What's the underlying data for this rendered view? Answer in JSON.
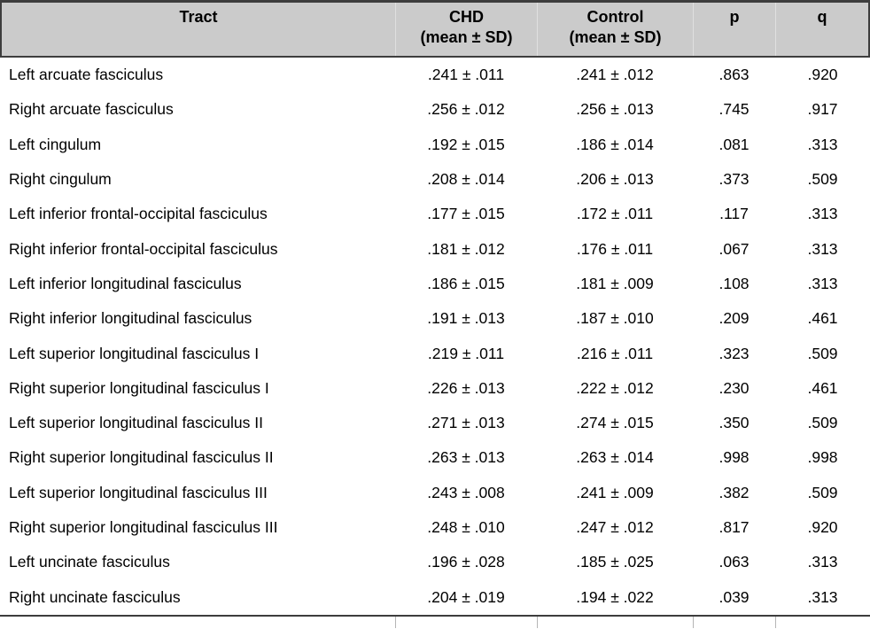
{
  "header": {
    "columns": [
      {
        "label": "Tract",
        "sub": ""
      },
      {
        "label": "CHD",
        "sub": "(mean ± SD)"
      },
      {
        "label": "Control",
        "sub": "(mean ± SD)"
      },
      {
        "label": "p",
        "sub": ""
      },
      {
        "label": "q",
        "sub": ""
      }
    ]
  },
  "rows": [
    {
      "tract": "Left arcuate fasciculus",
      "chd": ".241 ± .011",
      "control": ".241 ± .012",
      "p": ".863",
      "q": ".920"
    },
    {
      "tract": "Right arcuate fasciculus",
      "chd": ".256 ± .012",
      "control": ".256 ± .013",
      "p": ".745",
      "q": ".917"
    },
    {
      "tract": "Left cingulum",
      "chd": ".192 ± .015",
      "control": ".186 ± .014",
      "p": ".081",
      "q": ".313"
    },
    {
      "tract": "Right cingulum",
      "chd": ".208 ± .014",
      "control": ".206 ± .013",
      "p": ".373",
      "q": ".509"
    },
    {
      "tract": "Left inferior frontal-occipital fasciculus",
      "chd": ".177 ± .015",
      "control": ".172 ± .011",
      "p": ".117",
      "q": ".313"
    },
    {
      "tract": "Right inferior frontal-occipital fasciculus",
      "chd": ".181 ± .012",
      "control": ".176 ± .011",
      "p": ".067",
      "q": ".313"
    },
    {
      "tract": "Left inferior longitudinal fasciculus",
      "chd": ".186 ± .015",
      "control": ".181 ± .009",
      "p": ".108",
      "q": ".313"
    },
    {
      "tract": "Right inferior longitudinal fasciculus",
      "chd": ".191 ± .013",
      "control": ".187 ± .010",
      "p": ".209",
      "q": ".461"
    },
    {
      "tract": "Left superior longitudinal fasciculus I",
      "chd": ".219 ± .011",
      "control": ".216 ± .011",
      "p": ".323",
      "q": ".509"
    },
    {
      "tract": "Right superior longitudinal fasciculus I",
      "chd": ".226 ± .013",
      "control": ".222 ± .012",
      "p": ".230",
      "q": ".461"
    },
    {
      "tract": "Left superior longitudinal fasciculus II",
      "chd": ".271 ± .013",
      "control": ".274 ± .015",
      "p": ".350",
      "q": ".509"
    },
    {
      "tract": "Right superior longitudinal fasciculus II",
      "chd": ".263 ± .013",
      "control": ".263 ± .014",
      "p": ".998",
      "q": ".998"
    },
    {
      "tract": "Left superior longitudinal fasciculus III",
      "chd": ".243 ± .008",
      "control": ".241 ± .009",
      "p": ".382",
      "q": ".509"
    },
    {
      "tract": "Right superior longitudinal fasciculus III",
      "chd": ".248 ± .010",
      "control": ".247 ± .012",
      "p": ".817",
      "q": ".920"
    },
    {
      "tract": "Left uncinate fasciculus",
      "chd": ".196 ± .028",
      "control": ".185 ± .025",
      "p": ".063",
      "q": ".313"
    },
    {
      "tract": "Right uncinate fasciculus",
      "chd": ".204 ± .019",
      "control": ".194 ± .022",
      "p": ".039",
      "q": ".313"
    }
  ],
  "colors": {
    "header_bg": "#cbcbcb",
    "rule_dark": "#3d3d3d",
    "header_separator": "#e0e0e0",
    "footer_separator": "#b5b5b5",
    "text": "#000000"
  }
}
